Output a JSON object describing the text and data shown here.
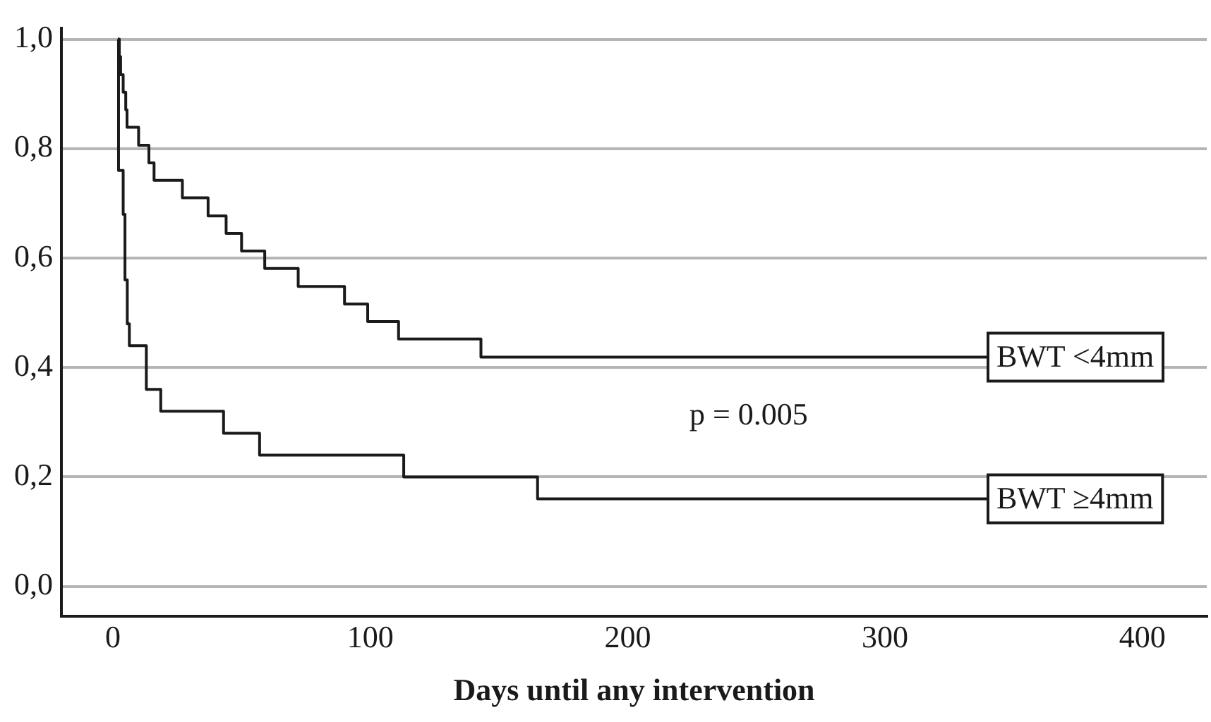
{
  "chart_data": {
    "type": "step",
    "xlabel": "Days until any intervention",
    "xlim": [
      -20,
      425
    ],
    "xticks": [
      0,
      100,
      200,
      300,
      400
    ],
    "ylim": [
      -0.055,
      1.02
    ],
    "yticks": [
      {
        "value": 0,
        "label": "0,0"
      },
      {
        "value": 0.2,
        "label": "0,2"
      },
      {
        "value": 0.4,
        "label": "0,4"
      },
      {
        "value": 0.6,
        "label": "0,6"
      },
      {
        "value": 0.8,
        "label": "0,8"
      },
      {
        "value": 1,
        "label": "1,0"
      }
    ],
    "grid": "y",
    "legend": false,
    "line_style": "solid",
    "marker": "none",
    "series": [
      {
        "name": "BWT <4mm",
        "color": "#1a1a1a",
        "x": [
          2,
          2.5,
          3,
          4,
          5,
          5.5,
          10,
          14,
          16,
          27,
          37,
          44,
          50,
          59,
          72,
          90,
          99,
          111,
          143,
          340
        ],
        "values": [
          1,
          0.968,
          0.935,
          0.903,
          0.871,
          0.839,
          0.806,
          0.774,
          0.742,
          0.71,
          0.677,
          0.645,
          0.613,
          0.581,
          0.548,
          0.516,
          0.484,
          0.452,
          0.419,
          0.419
        ]
      },
      {
        "name": "BWT ≥4mm",
        "color": "#1a1a1a",
        "x": [
          2,
          2.2,
          4,
          4.7,
          5.6,
          6.4,
          13,
          18.6,
          43,
          57,
          113,
          165,
          340
        ],
        "values": [
          1,
          0.76,
          0.68,
          0.56,
          0.48,
          0.44,
          0.36,
          0.32,
          0.28,
          0.24,
          0.2,
          0.16,
          0.16
        ]
      }
    ],
    "annotations": [
      "p = 0.005"
    ]
  }
}
